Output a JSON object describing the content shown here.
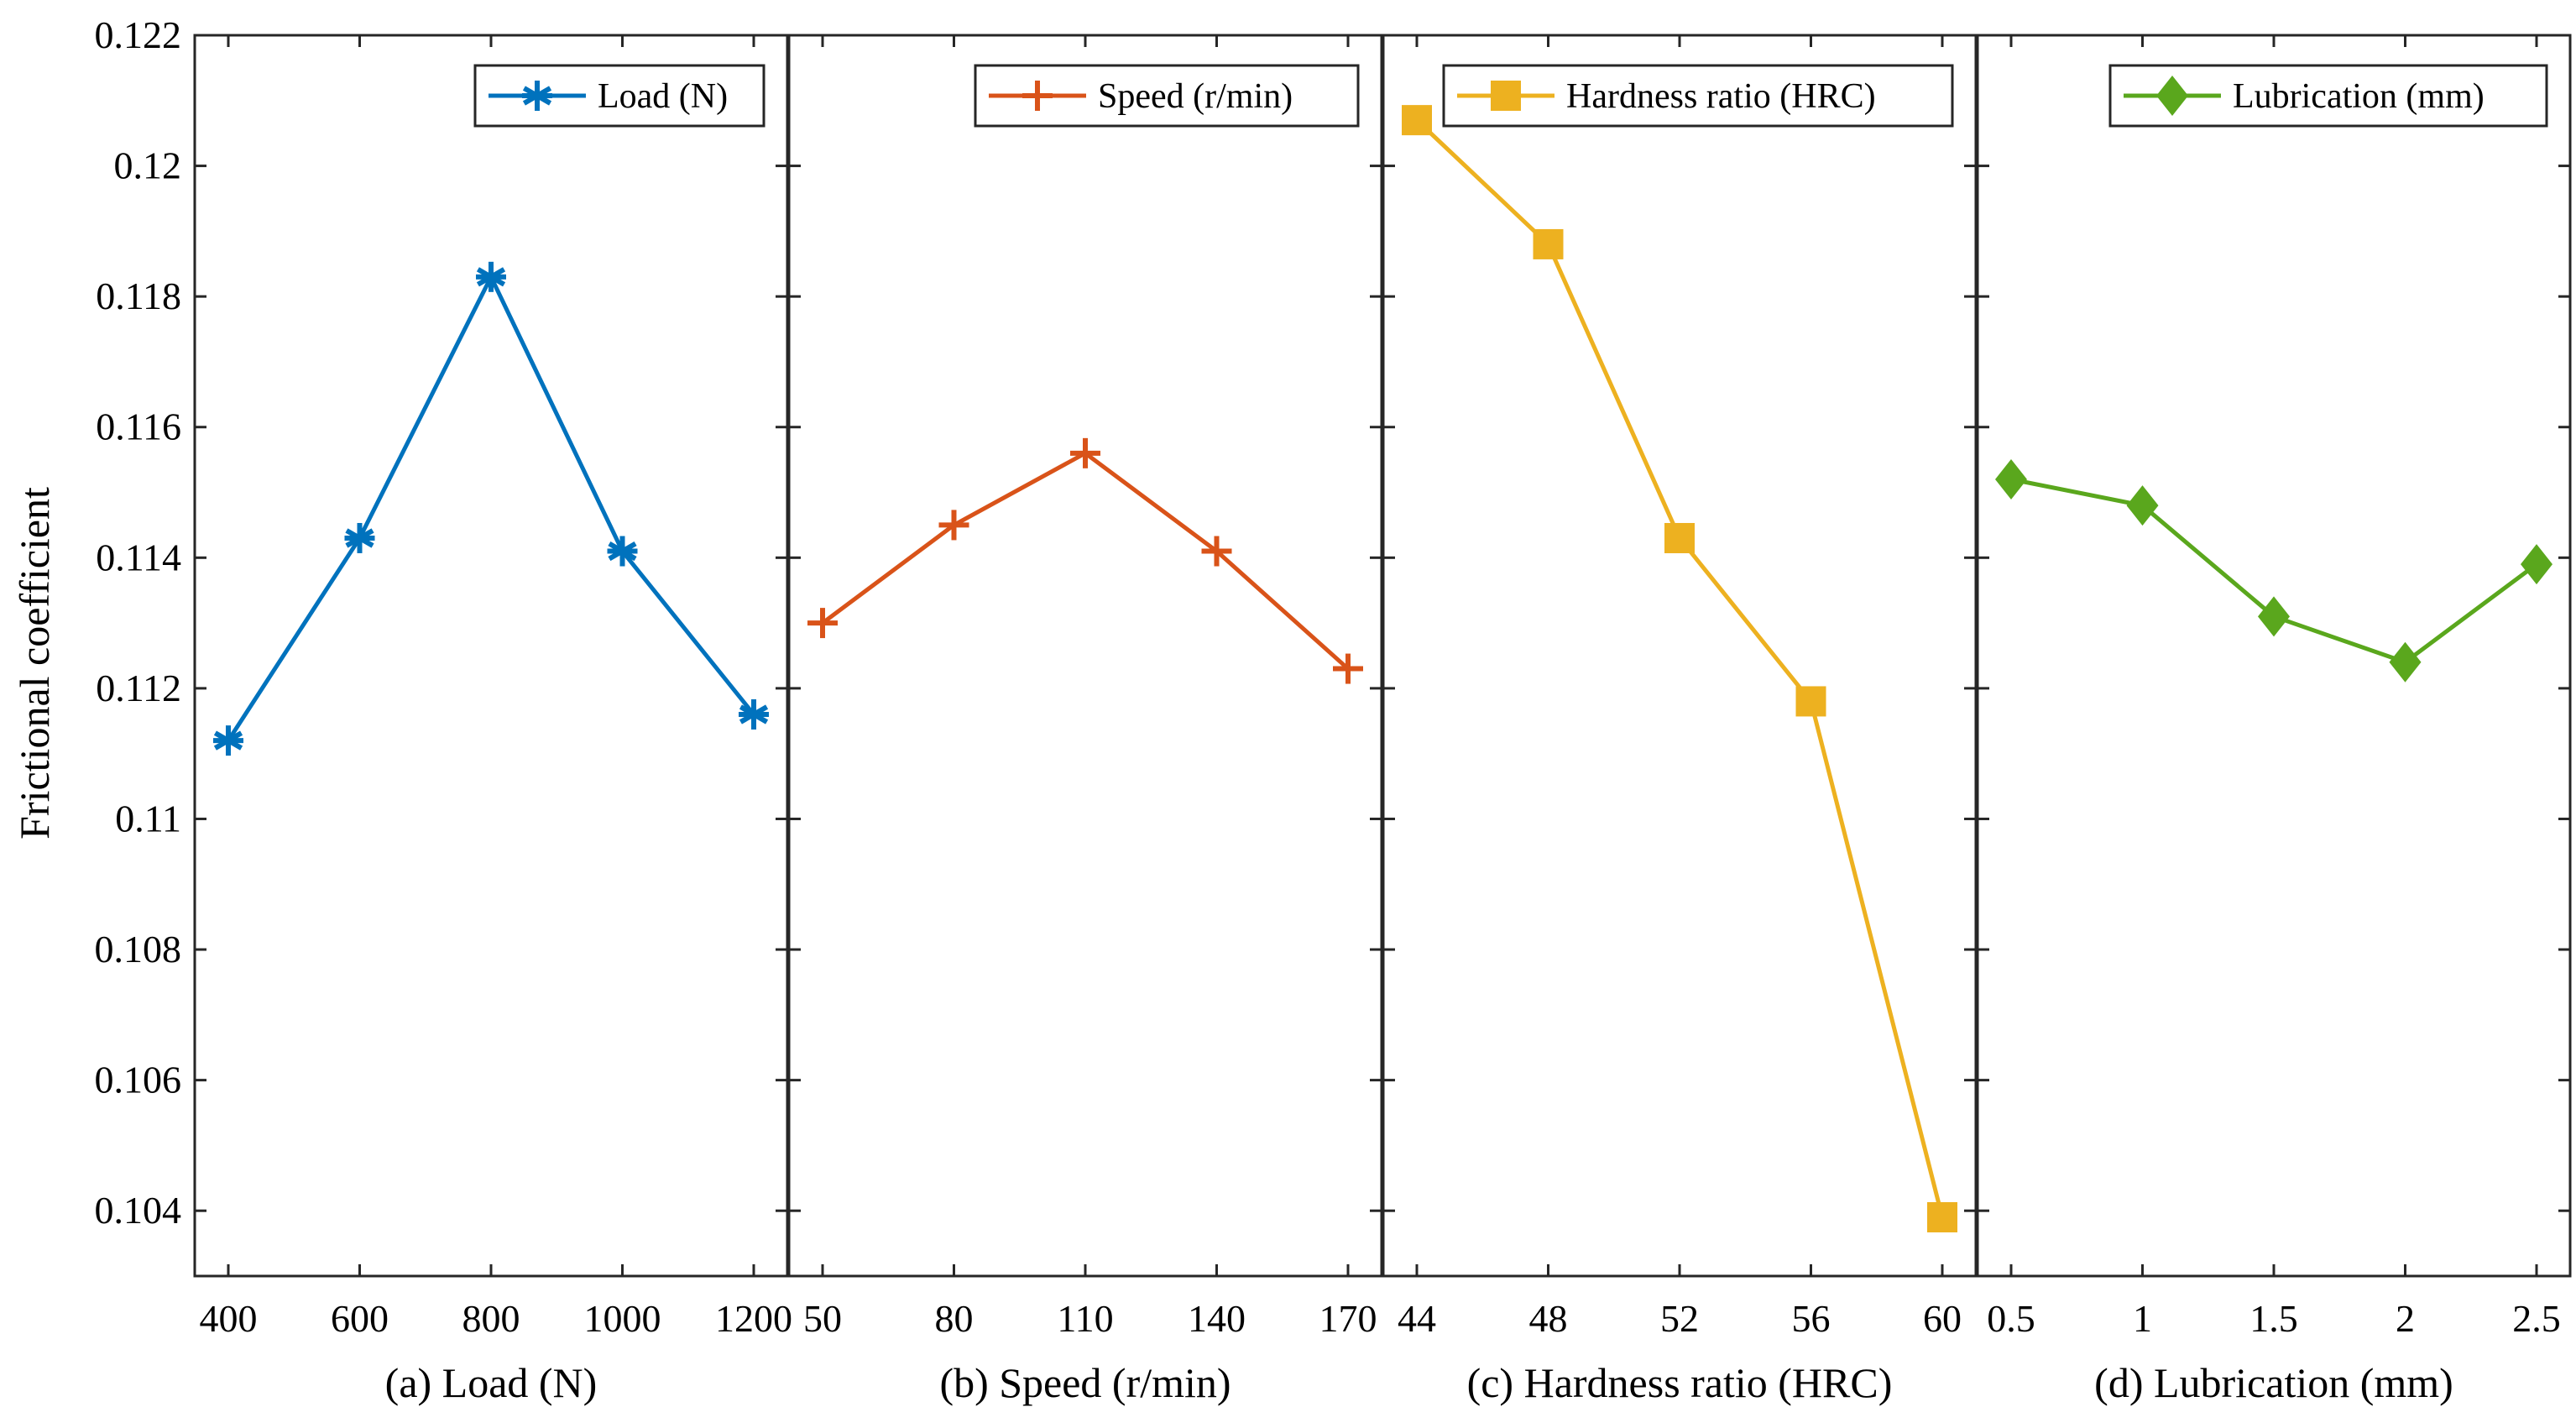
{
  "ylabel": "Frictional coefficient",
  "ylim": [
    0.103,
    0.122
  ],
  "yticks": [
    0.104,
    0.106,
    0.108,
    0.11,
    0.112,
    0.114,
    0.116,
    0.118,
    0.12,
    0.122
  ],
  "yticklabels": [
    "0.104",
    "0.106",
    "0.108",
    "0.11",
    "0.112",
    "0.114",
    "0.116",
    "0.118",
    "0.12",
    "0.122"
  ],
  "chart_data": [
    {
      "type": "line",
      "xlabel": "(a) Load (N)",
      "ylabel": "Frictional coefficient",
      "categories": [
        "400",
        "600",
        "800",
        "1000",
        "1200"
      ],
      "series": [
        {
          "name": "Load (N)",
          "values": [
            0.1112,
            0.1143,
            0.1183,
            0.1141,
            0.1116
          ],
          "color": "#0072BD",
          "marker": "asterisk"
        }
      ],
      "ylim": [
        0.103,
        0.122
      ],
      "legend": "top-right"
    },
    {
      "type": "line",
      "xlabel": "(b) Speed (r/min)",
      "categories": [
        "50",
        "80",
        "110",
        "140",
        "170"
      ],
      "series": [
        {
          "name": "Speed (r/min)",
          "values": [
            0.113,
            0.1145,
            0.1156,
            0.1141,
            0.1123
          ],
          "color": "#D95319",
          "marker": "plus"
        }
      ],
      "ylim": [
        0.103,
        0.122
      ],
      "legend": "top-right"
    },
    {
      "type": "line",
      "xlabel": "(c) Hardness ratio (HRC)",
      "categories": [
        "44",
        "48",
        "52",
        "56",
        "60"
      ],
      "series": [
        {
          "name": "Hardness ratio (HRC)",
          "values": [
            0.1207,
            0.1188,
            0.1143,
            0.1118,
            0.1039
          ],
          "color": "#EDB120",
          "marker": "square"
        }
      ],
      "ylim": [
        0.103,
        0.122
      ],
      "legend": "top-right"
    },
    {
      "type": "line",
      "xlabel": "(d) Lubrication (mm)",
      "categories": [
        "0.5",
        "1",
        "1.5",
        "2",
        "2.5"
      ],
      "series": [
        {
          "name": "Lubrication (mm)",
          "values": [
            0.1152,
            0.1148,
            0.1131,
            0.1124,
            0.1139
          ],
          "color": "#5AA71D",
          "marker": "diamond"
        }
      ],
      "ylim": [
        0.103,
        0.122
      ],
      "legend": "top-right"
    }
  ]
}
